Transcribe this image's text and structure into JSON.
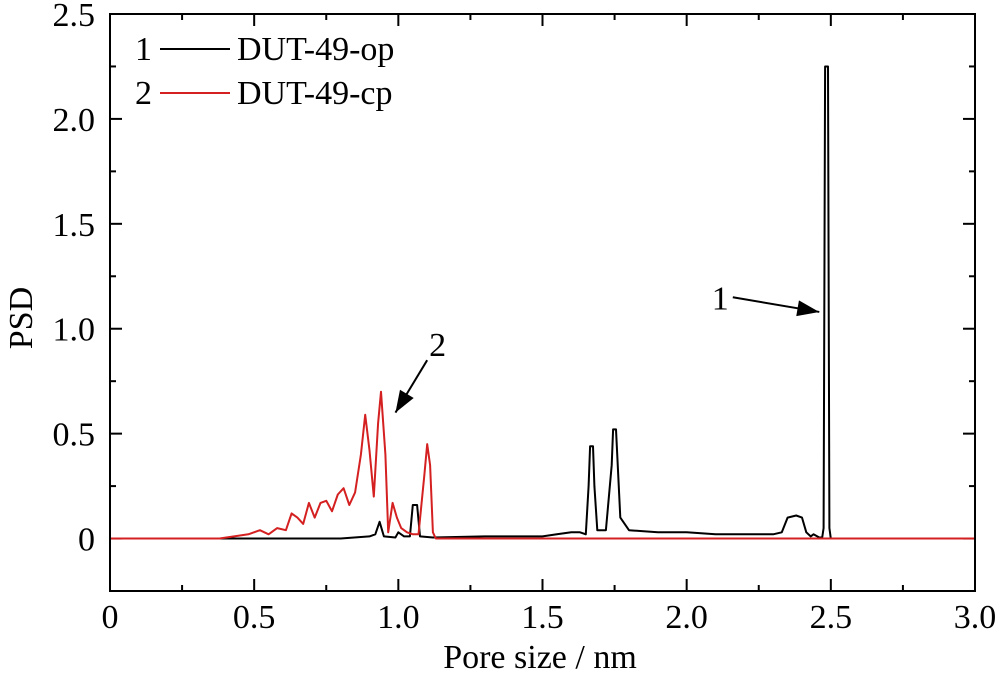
{
  "chart_data": {
    "type": "line",
    "xlabel": "Pore size / nm",
    "ylabel": "PSD",
    "xlim": [
      0,
      3.0
    ],
    "ylim": [
      -0.25,
      2.5
    ],
    "x_ticks": [
      {
        "value": 0,
        "label": "0"
      },
      {
        "value": 0.5,
        "label": "0.5"
      },
      {
        "value": 1.0,
        "label": "1.0"
      },
      {
        "value": 1.5,
        "label": "1.5"
      },
      {
        "value": 2.0,
        "label": "2.0"
      },
      {
        "value": 2.5,
        "label": "2.5"
      },
      {
        "value": 3.0,
        "label": "3.0"
      }
    ],
    "y_ticks": [
      {
        "value": 0,
        "label": "0"
      },
      {
        "value": 0.5,
        "label": "0.5"
      },
      {
        "value": 1.0,
        "label": "1.0"
      },
      {
        "value": 1.5,
        "label": "1.5"
      },
      {
        "value": 2.0,
        "label": "2.0"
      },
      {
        "value": 2.5,
        "label": "2.5"
      }
    ],
    "legend": {
      "position": "top-left",
      "entries": [
        {
          "number": "1",
          "name": "DUT-49-op",
          "color": "#000000"
        },
        {
          "number": "2",
          "name": "DUT-49-cp",
          "color": "#d42020"
        }
      ]
    },
    "annotations": [
      {
        "text": "1",
        "series": "DUT-49-op",
        "tail": [
          2.16,
          1.15
        ],
        "head": [
          2.46,
          1.08
        ]
      },
      {
        "text": "2",
        "series": "DUT-49-cp",
        "tail": [
          1.1,
          0.85
        ],
        "head": [
          0.99,
          0.6
        ]
      }
    ],
    "series": [
      {
        "name": "DUT-49-op",
        "color": "#000000",
        "points": [
          [
            0,
            0
          ],
          [
            0.5,
            0
          ],
          [
            0.8,
            0.0
          ],
          [
            0.9,
            0.01
          ],
          [
            0.92,
            0.02
          ],
          [
            0.935,
            0.08
          ],
          [
            0.95,
            0.01
          ],
          [
            0.99,
            0.005
          ],
          [
            1.0,
            0.03
          ],
          [
            1.02,
            0.01
          ],
          [
            1.04,
            0.01
          ],
          [
            1.05,
            0.16
          ],
          [
            1.065,
            0.16
          ],
          [
            1.075,
            0.01
          ],
          [
            1.12,
            0.005
          ],
          [
            1.3,
            0.01
          ],
          [
            1.5,
            0.01
          ],
          [
            1.55,
            0.02
          ],
          [
            1.6,
            0.03
          ],
          [
            1.63,
            0.03
          ],
          [
            1.65,
            0.02
          ],
          [
            1.66,
            0.25
          ],
          [
            1.665,
            0.44
          ],
          [
            1.675,
            0.44
          ],
          [
            1.68,
            0.25
          ],
          [
            1.69,
            0.04
          ],
          [
            1.72,
            0.04
          ],
          [
            1.74,
            0.35
          ],
          [
            1.745,
            0.52
          ],
          [
            1.755,
            0.52
          ],
          [
            1.77,
            0.1
          ],
          [
            1.8,
            0.04
          ],
          [
            1.9,
            0.03
          ],
          [
            2.0,
            0.03
          ],
          [
            2.1,
            0.02
          ],
          [
            2.2,
            0.02
          ],
          [
            2.3,
            0.02
          ],
          [
            2.33,
            0.03
          ],
          [
            2.35,
            0.1
          ],
          [
            2.38,
            0.11
          ],
          [
            2.4,
            0.1
          ],
          [
            2.415,
            0.03
          ],
          [
            2.43,
            0.01
          ],
          [
            2.44,
            0.02
          ],
          [
            2.46,
            0.005
          ],
          [
            2.47,
            0.005
          ],
          [
            2.475,
            0.05
          ],
          [
            2.48,
            2.25
          ],
          [
            2.49,
            2.25
          ],
          [
            2.495,
            0.05
          ],
          [
            2.5,
            0.0
          ],
          [
            3.0,
            0.0
          ]
        ]
      },
      {
        "name": "DUT-49-cp",
        "color": "#d42020",
        "points": [
          [
            0,
            0
          ],
          [
            0.38,
            0
          ],
          [
            0.43,
            0.01
          ],
          [
            0.48,
            0.02
          ],
          [
            0.52,
            0.04
          ],
          [
            0.55,
            0.02
          ],
          [
            0.58,
            0.05
          ],
          [
            0.61,
            0.04
          ],
          [
            0.63,
            0.12
          ],
          [
            0.65,
            0.1
          ],
          [
            0.67,
            0.07
          ],
          [
            0.69,
            0.17
          ],
          [
            0.71,
            0.1
          ],
          [
            0.73,
            0.17
          ],
          [
            0.75,
            0.18
          ],
          [
            0.77,
            0.13
          ],
          [
            0.79,
            0.21
          ],
          [
            0.81,
            0.24
          ],
          [
            0.83,
            0.16
          ],
          [
            0.85,
            0.22
          ],
          [
            0.87,
            0.4
          ],
          [
            0.885,
            0.59
          ],
          [
            0.9,
            0.42
          ],
          [
            0.915,
            0.2
          ],
          [
            0.93,
            0.55
          ],
          [
            0.94,
            0.7
          ],
          [
            0.955,
            0.4
          ],
          [
            0.965,
            0.03
          ],
          [
            0.98,
            0.17
          ],
          [
            0.995,
            0.1
          ],
          [
            1.01,
            0.05
          ],
          [
            1.03,
            0.03
          ],
          [
            1.05,
            0.02
          ],
          [
            1.07,
            0.02
          ],
          [
            1.09,
            0.3
          ],
          [
            1.1,
            0.45
          ],
          [
            1.11,
            0.35
          ],
          [
            1.12,
            0.03
          ],
          [
            1.13,
            0.0
          ],
          [
            3.0,
            0.0
          ]
        ]
      }
    ]
  }
}
